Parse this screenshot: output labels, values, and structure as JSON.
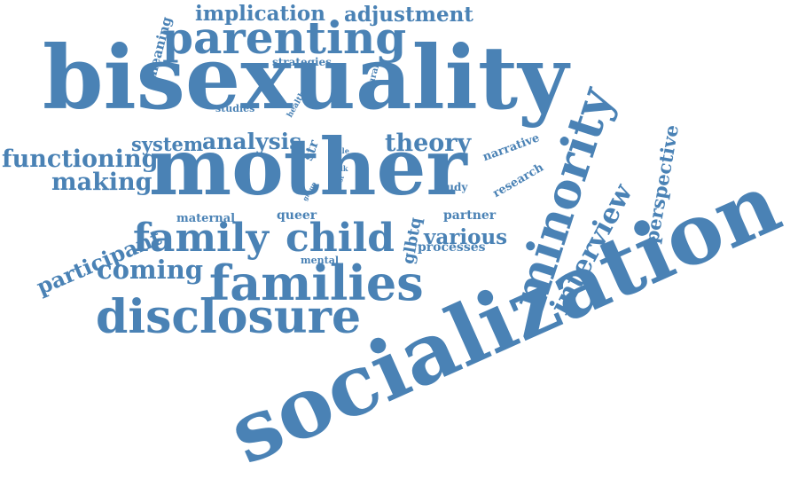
{
  "word_color": "#4a82b5",
  "background": "#ffffff",
  "words": [
    {
      "text": "implication",
      "weight": 22
    },
    {
      "text": "adjustment",
      "weight": 22
    },
    {
      "text": "meaning",
      "weight": 14
    },
    {
      "text": "parenting",
      "weight": 48
    },
    {
      "text": "strategies",
      "weight": 11
    },
    {
      "text": "cultural",
      "weight": 9
    },
    {
      "text": "bisexuality",
      "weight": 96
    },
    {
      "text": "studies",
      "weight": 11
    },
    {
      "text": "health",
      "weight": 9
    },
    {
      "text": "minority",
      "weight": 52
    },
    {
      "text": "perspective",
      "weight": 20
    },
    {
      "text": "narrative",
      "weight": 13
    },
    {
      "text": "theory",
      "weight": 26
    },
    {
      "text": "system",
      "weight": 20
    },
    {
      "text": "analysis",
      "weight": 24
    },
    {
      "text": "str",
      "weight": 14
    },
    {
      "text": "functioning",
      "weight": 26
    },
    {
      "text": "making",
      "weight": 26
    },
    {
      "text": "male",
      "weight": 8
    },
    {
      "text": "talk",
      "weight": 8
    },
    {
      "text": "most",
      "weight": 7
    },
    {
      "text": "group",
      "weight": 7
    },
    {
      "text": "mother",
      "weight": 84
    },
    {
      "text": "research",
      "weight": 13
    },
    {
      "text": "study",
      "weight": 12
    },
    {
      "text": "interview",
      "weight": 30
    },
    {
      "text": "participant",
      "weight": 23
    },
    {
      "text": "maternal",
      "weight": 13
    },
    {
      "text": "queer",
      "weight": 14
    },
    {
      "text": "partner",
      "weight": 14
    },
    {
      "text": "family",
      "weight": 42
    },
    {
      "text": "child",
      "weight": 42
    },
    {
      "text": "glbtq",
      "weight": 18
    },
    {
      "text": "various",
      "weight": 22
    },
    {
      "text": "processes",
      "weight": 14
    },
    {
      "text": "mental",
      "weight": 11
    },
    {
      "text": "coming",
      "weight": 28
    },
    {
      "text": "families",
      "weight": 52
    },
    {
      "text": "disclosure",
      "weight": 50
    },
    {
      "text": "socialization",
      "weight": 92
    }
  ]
}
